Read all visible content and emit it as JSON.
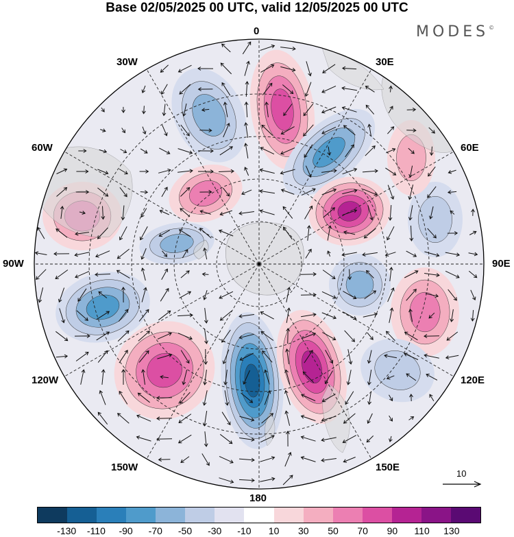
{
  "header": {
    "title": "Base 02/05/2025 00 UTC, valid 12/05/2025 00 UTC",
    "logo_text": "MODES",
    "logo_mark": "©"
  },
  "map": {
    "projection": "south-polar-stereographic",
    "longitude_labels": {
      "top": "0",
      "top_right": "30E",
      "right_upper": "60E",
      "right": "90E",
      "right_lower": "120E",
      "bottom_right": "150E",
      "bottom": "180",
      "bottom_left": "150W",
      "left_lower": "120W",
      "left": "90W",
      "left_upper": "60W",
      "top_left": "30W"
    },
    "reference_vector_label": "10",
    "icons": [
      "wind-vector-arrow-icon",
      "coastline-icon",
      "pole-marker-icon"
    ]
  },
  "colorbar": {
    "labels": [
      "-130",
      "-110",
      "-90",
      "-70",
      "-50",
      "-30",
      "-10",
      "10",
      "30",
      "50",
      "70",
      "90",
      "110",
      "130"
    ],
    "colors": [
      "#0e3a5e",
      "#155f94",
      "#2a7fb9",
      "#4f9bcb",
      "#8cb4d9",
      "#bfcde6",
      "#e2e2f0",
      "#ffffff",
      "#f8d7db",
      "#f4aec0",
      "#ec7fb2",
      "#dc4fa3",
      "#b52393",
      "#8a1487",
      "#5a0a73"
    ]
  }
}
